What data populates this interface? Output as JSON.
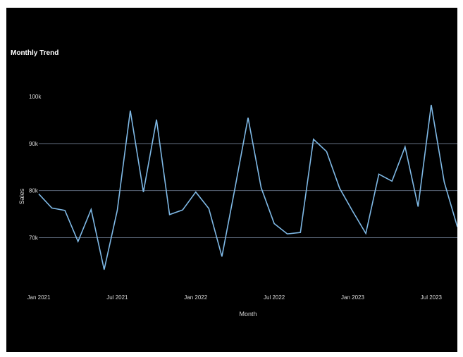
{
  "chart_data": {
    "type": "line",
    "title": "Monthly Trend",
    "xlabel": "Month",
    "ylabel": "Sales",
    "x": [
      "2021-01",
      "2021-02",
      "2021-03",
      "2021-04",
      "2021-05",
      "2021-06",
      "2021-07",
      "2021-08",
      "2021-09",
      "2021-10",
      "2021-11",
      "2021-12",
      "2022-01",
      "2022-02",
      "2022-03",
      "2022-04",
      "2022-05",
      "2022-06",
      "2022-07",
      "2022-08",
      "2022-09",
      "2022-10",
      "2022-11",
      "2022-12",
      "2023-01",
      "2023-02",
      "2023-03",
      "2023-04",
      "2023-05",
      "2023-06",
      "2023-07",
      "2023-08",
      "2023-09"
    ],
    "x_tick_labels": [
      "Jan 2021",
      "Jul 2021",
      "Jan 2022",
      "Jul 2022",
      "Jan 2023",
      "Jul 2023"
    ],
    "x_tick_positions": [
      "2021-01",
      "2021-07",
      "2022-01",
      "2022-07",
      "2023-01",
      "2023-07"
    ],
    "y_tick_labels": [
      "70k",
      "80k",
      "90k",
      "100k"
    ],
    "y_tick_values": [
      70000,
      80000,
      90000,
      100000
    ],
    "ylim": [
      62000,
      100000
    ],
    "grid": "horizontal",
    "series": [
      {
        "values": [
          79300,
          76300,
          75800,
          69200,
          76000,
          63200,
          75800,
          97000,
          79700,
          95100,
          74900,
          75900,
          79700,
          76200,
          66000,
          80500,
          95500,
          80600,
          73000,
          70800,
          71100,
          90900,
          88300,
          80500,
          75600,
          70900,
          83500,
          82000,
          89300,
          76600,
          98200,
          81800,
          72300
        ]
      }
    ],
    "colors": {
      "line": "#7fb9e6",
      "grid": "#5a6577",
      "background": "#000000"
    }
  }
}
